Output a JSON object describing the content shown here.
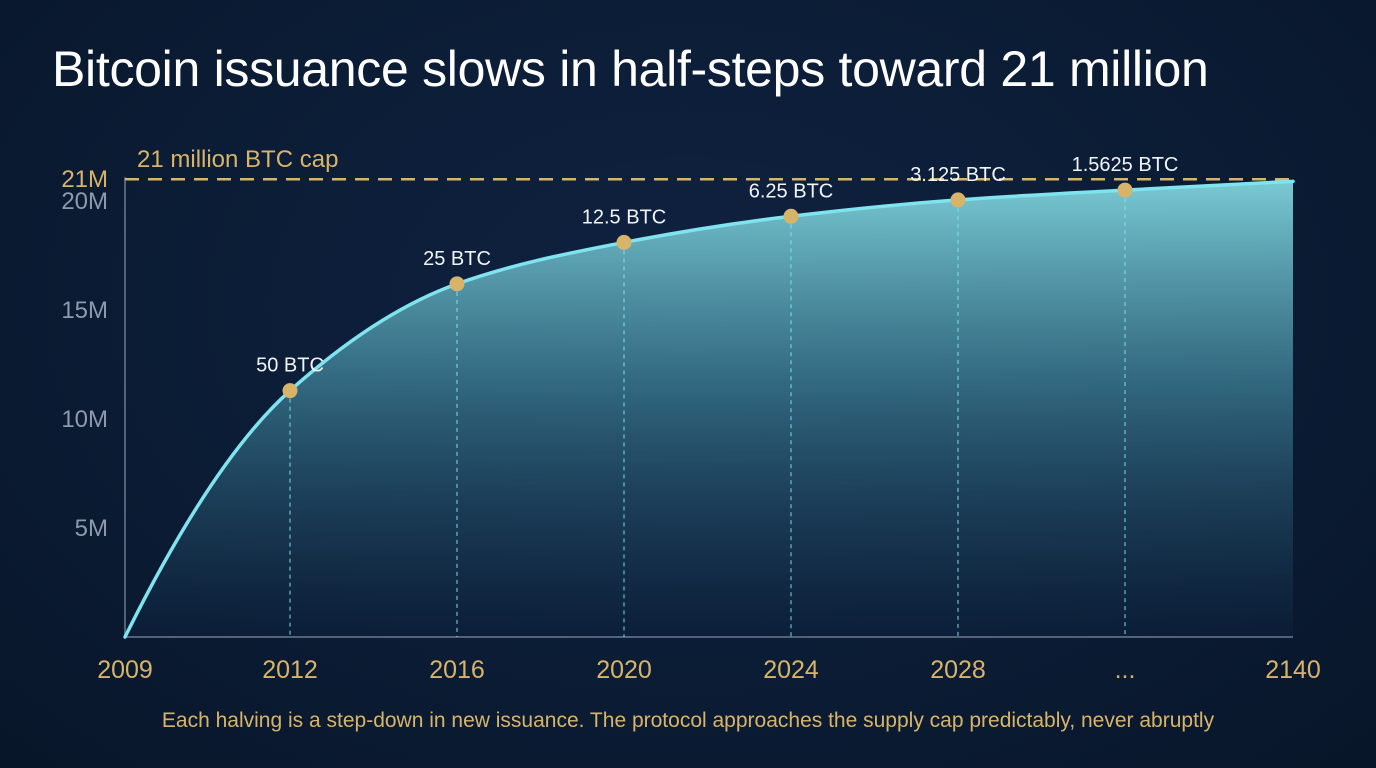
{
  "title": "Bitcoin issuance slows in half-steps toward 21 million",
  "caption": "Each halving is a step-down in new issuance. The protocol approaches the supply cap predictably, never abruptly",
  "colors": {
    "background": "#0b1c35",
    "curve": "#7fe3f0",
    "fill_top": "#7fd3dc",
    "marker": "#d8b46a",
    "cap_line": "#d8b46a",
    "axis_text": "#8e99ab",
    "annotation": "#f2f5f8"
  },
  "chart_data": {
    "type": "area",
    "title": "Bitcoin issuance slows in half-steps toward 21 million",
    "xlabel": "",
    "ylabel": "",
    "ylim": [
      0,
      21000000
    ],
    "grid": false,
    "x_tick_labels": [
      "2009",
      "2012",
      "2016",
      "2020",
      "2024",
      "2028",
      "...",
      "2140"
    ],
    "y_ticks": [
      {
        "value": 5000000,
        "label": "5M"
      },
      {
        "value": 10000000,
        "label": "10M"
      },
      {
        "value": 15000000,
        "label": "15M"
      },
      {
        "value": 20000000,
        "label": "20M"
      },
      {
        "value": 21000000,
        "label": "21M"
      }
    ],
    "cap": {
      "value": 21000000,
      "label": "21 million BTC cap"
    },
    "series": [
      {
        "x": [
          "2009",
          "2012",
          "2016",
          "2020",
          "2024",
          "2028",
          "...",
          "2140"
        ],
        "values": [
          0,
          11300000,
          16200000,
          18100000,
          19300000,
          20050000,
          20500000,
          20900000
        ]
      }
    ],
    "halvings": [
      {
        "x": "2012",
        "value": 11300000,
        "label": "50 BTC"
      },
      {
        "x": "2016",
        "value": 16200000,
        "label": "25 BTC"
      },
      {
        "x": "2020",
        "value": 18100000,
        "label": "12.5 BTC"
      },
      {
        "x": "2024",
        "value": 19300000,
        "label": "6.25 BTC"
      },
      {
        "x": "2028",
        "value": 20050000,
        "label": "3.125 BTC"
      },
      {
        "x": "...",
        "value": 20500000,
        "label": "1.5625 BTC"
      }
    ]
  }
}
